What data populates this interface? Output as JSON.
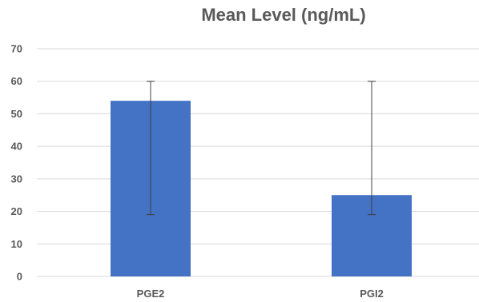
{
  "chart_data": {
    "type": "bar",
    "title": "Mean Level (ng/mL)",
    "xlabel": "",
    "ylabel": "",
    "categories": [
      "PGE2",
      "PGI2"
    ],
    "values": [
      54,
      25
    ],
    "error_bars": [
      {
        "low": 19,
        "high": 60
      },
      {
        "low": 19,
        "high": 60
      }
    ],
    "ylim": [
      0,
      70
    ],
    "yticks": [
      0,
      10,
      20,
      30,
      40,
      50,
      60,
      70
    ],
    "grid": true,
    "legend": "none",
    "bar_color": "#4472C4",
    "gridline_color": "#D9D9D9",
    "error_bar_color": "#404040"
  }
}
